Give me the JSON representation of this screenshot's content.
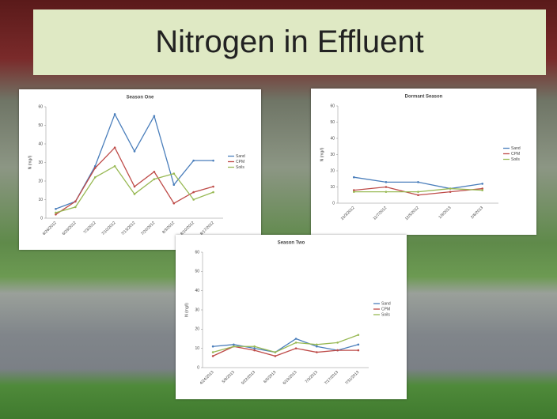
{
  "slide_title": "Nitrogen in Effluent",
  "chart_data": [
    {
      "type": "line",
      "title": "Season One",
      "y_label": "N (mg/l)",
      "categories": [
        "6/26/2012",
        "6/29/2012",
        "7/3/2012",
        "7/10/2012",
        "7/13/2012",
        "7/20/2012",
        "8/3/2012",
        "8/10/2012",
        "8/17/2012"
      ],
      "ylim": [
        0,
        60
      ],
      "yticks": [
        0,
        10,
        20,
        30,
        40,
        50,
        60
      ],
      "series": [
        {
          "name": "Sand",
          "color": "#4a7ebb",
          "values": [
            5,
            9,
            28,
            56,
            36,
            55,
            18,
            31,
            31
          ]
        },
        {
          "name": "CPM",
          "color": "#be4b48",
          "values": [
            2,
            9,
            27,
            38,
            17,
            25,
            8,
            14,
            17
          ]
        },
        {
          "name": "Soils",
          "color": "#98b954",
          "values": [
            3,
            6,
            22,
            28,
            13,
            21,
            24,
            10,
            14
          ]
        }
      ]
    },
    {
      "type": "line",
      "title": "Dormant Season",
      "y_label": "N (mg/l)",
      "categories": [
        "10/3/2012",
        "11/7/2012",
        "12/5/2012",
        "1/9/2013",
        "2/6/2013"
      ],
      "ylim": [
        0,
        60
      ],
      "yticks": [
        0,
        10,
        20,
        30,
        40,
        50,
        60
      ],
      "series": [
        {
          "name": "Sand",
          "color": "#4a7ebb",
          "values": [
            16,
            13,
            13,
            9,
            12
          ]
        },
        {
          "name": "CPM",
          "color": "#be4b48",
          "values": [
            8,
            10,
            5,
            7,
            9
          ]
        },
        {
          "name": "Soils",
          "color": "#98b954",
          "values": [
            7,
            7,
            7,
            9,
            8
          ]
        }
      ]
    },
    {
      "type": "line",
      "title": "Season Two",
      "y_label": "N (mg/l)",
      "categories": [
        "4/24/2013",
        "5/8/2013",
        "5/22/2013",
        "6/5/2013",
        "6/19/2013",
        "7/3/2013",
        "7/17/2013",
        "7/31/2013"
      ],
      "ylim": [
        0,
        60
      ],
      "yticks": [
        0,
        10,
        20,
        30,
        40,
        50,
        60
      ],
      "series": [
        {
          "name": "Sand",
          "color": "#4a7ebb",
          "values": [
            11,
            12,
            10,
            8,
            15,
            11,
            9,
            12
          ]
        },
        {
          "name": "CPM",
          "color": "#be4b48",
          "values": [
            6,
            11,
            9,
            6,
            10,
            8,
            9,
            9
          ]
        },
        {
          "name": "Soils",
          "color": "#98b954",
          "values": [
            8,
            11,
            11,
            8,
            13,
            12,
            13,
            17
          ]
        }
      ]
    }
  ]
}
